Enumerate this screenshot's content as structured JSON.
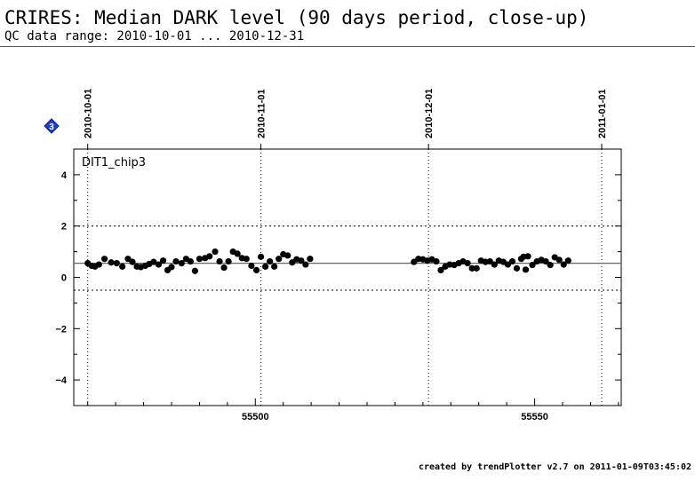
{
  "header": {
    "title": "CRIRES: Median DARK level (90 days period, close-up)",
    "subtitle": "QC data range: 2010-10-01 ... 2010-12-31"
  },
  "footer": {
    "text": "created by trendPlotter v2.7 on 2011-01-09T03:45:02"
  },
  "badge": {
    "label": "3",
    "color": "#1f3fd0",
    "icon": "diamond-icon"
  },
  "chart_data": {
    "type": "scatter",
    "panel_label": "DIT1_chip3",
    "xlim": [
      55467.5,
      55565.5
    ],
    "ylim": [
      -5,
      5
    ],
    "xticks": [
      55500,
      55550
    ],
    "yticks": [
      -4,
      -2,
      0,
      2,
      4
    ],
    "median": 0.55,
    "threshold_lines": [
      2,
      -0.5
    ],
    "grid": "dotted",
    "top_date_axis": [
      {
        "label": "2010-10-01",
        "mjd": 55470
      },
      {
        "label": "2010-11-01",
        "mjd": 55501
      },
      {
        "label": "2010-12-01",
        "mjd": 55531
      },
      {
        "label": "2011-01-01",
        "mjd": 55562
      }
    ],
    "marker_color": "#000000",
    "series": [
      {
        "points": [
          [
            55470.0,
            0.55
          ],
          [
            55470.7,
            0.45
          ],
          [
            55471.3,
            0.42
          ],
          [
            55472.0,
            0.5
          ],
          [
            55473.0,
            0.72
          ],
          [
            55474.2,
            0.58
          ],
          [
            55475.2,
            0.55
          ],
          [
            55476.2,
            0.42
          ],
          [
            55477.2,
            0.72
          ],
          [
            55478.0,
            0.6
          ],
          [
            55478.8,
            0.42
          ],
          [
            55479.5,
            0.4
          ],
          [
            55480.3,
            0.45
          ],
          [
            55481.0,
            0.52
          ],
          [
            55481.8,
            0.6
          ],
          [
            55482.7,
            0.5
          ],
          [
            55483.5,
            0.65
          ],
          [
            55484.3,
            0.28
          ],
          [
            55485.0,
            0.4
          ],
          [
            55485.8,
            0.62
          ],
          [
            55486.8,
            0.55
          ],
          [
            55487.6,
            0.72
          ],
          [
            55488.4,
            0.62
          ],
          [
            55489.2,
            0.25
          ],
          [
            55490.0,
            0.72
          ],
          [
            55491.0,
            0.75
          ],
          [
            55491.8,
            0.82
          ],
          [
            55492.8,
            1.0
          ],
          [
            55493.6,
            0.62
          ],
          [
            55494.4,
            0.38
          ],
          [
            55495.2,
            0.62
          ],
          [
            55496.0,
            1.0
          ],
          [
            55496.8,
            0.92
          ],
          [
            55497.6,
            0.75
          ],
          [
            55498.4,
            0.72
          ],
          [
            55499.3,
            0.45
          ],
          [
            55500.2,
            0.28
          ],
          [
            55501.0,
            0.8
          ],
          [
            55501.8,
            0.42
          ],
          [
            55502.6,
            0.62
          ],
          [
            55503.4,
            0.42
          ],
          [
            55504.2,
            0.72
          ],
          [
            55505.0,
            0.9
          ],
          [
            55505.8,
            0.85
          ],
          [
            55506.6,
            0.58
          ],
          [
            55507.4,
            0.7
          ],
          [
            55508.2,
            0.65
          ],
          [
            55509.0,
            0.5
          ],
          [
            55509.8,
            0.72
          ],
          [
            55528.4,
            0.6
          ],
          [
            55529.2,
            0.72
          ],
          [
            55530.0,
            0.7
          ],
          [
            55530.8,
            0.65
          ],
          [
            55531.6,
            0.7
          ],
          [
            55532.4,
            0.62
          ],
          [
            55533.2,
            0.28
          ],
          [
            55534.0,
            0.42
          ],
          [
            55534.8,
            0.5
          ],
          [
            55535.6,
            0.48
          ],
          [
            55536.4,
            0.55
          ],
          [
            55537.2,
            0.62
          ],
          [
            55538.0,
            0.55
          ],
          [
            55538.8,
            0.35
          ],
          [
            55539.6,
            0.35
          ],
          [
            55540.4,
            0.65
          ],
          [
            55541.2,
            0.6
          ],
          [
            55542.0,
            0.62
          ],
          [
            55542.8,
            0.5
          ],
          [
            55543.6,
            0.65
          ],
          [
            55544.4,
            0.6
          ],
          [
            55545.2,
            0.5
          ],
          [
            55546.0,
            0.62
          ],
          [
            55546.8,
            0.35
          ],
          [
            55547.6,
            0.72
          ],
          [
            55548.0,
            0.8
          ],
          [
            55548.4,
            0.3
          ],
          [
            55548.8,
            0.82
          ],
          [
            55549.6,
            0.48
          ],
          [
            55550.4,
            0.62
          ],
          [
            55551.2,
            0.68
          ],
          [
            55552.0,
            0.62
          ],
          [
            55552.8,
            0.48
          ],
          [
            55553.6,
            0.78
          ],
          [
            55554.4,
            0.68
          ],
          [
            55555.2,
            0.5
          ],
          [
            55556.0,
            0.65
          ]
        ]
      }
    ]
  }
}
